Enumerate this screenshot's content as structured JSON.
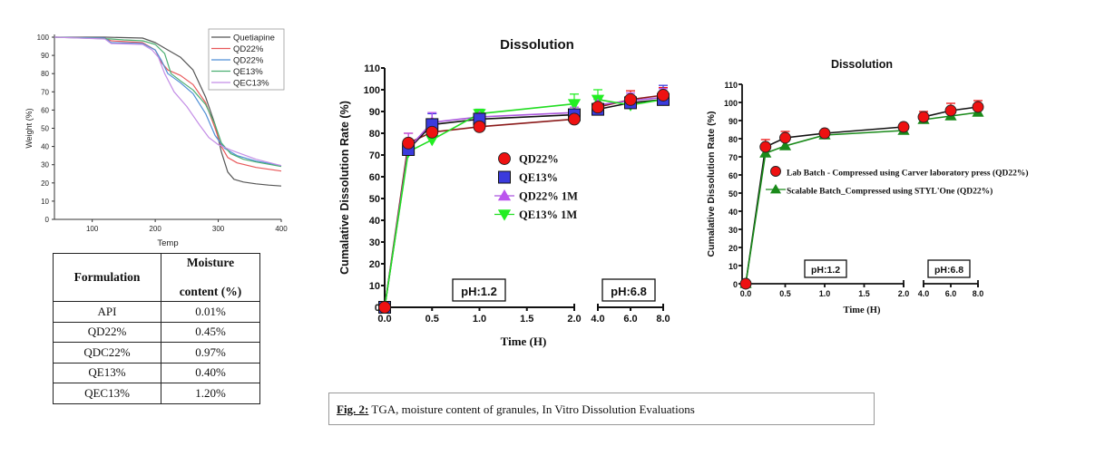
{
  "tga_chart": {
    "type": "line",
    "title": "",
    "xlabel": "Temp",
    "ylabel": "Weight (%)",
    "xlim": [
      40,
      400
    ],
    "ylim": [
      0,
      100
    ],
    "xticks": [
      100,
      200,
      300,
      400
    ],
    "yticks": [
      0,
      10,
      20,
      30,
      40,
      50,
      60,
      70,
      80,
      90,
      100
    ],
    "legend_position": "top-right",
    "series": [
      {
        "name": "Quetiapine",
        "color": "#555555",
        "x": [
          40,
          120,
          180,
          200,
          220,
          240,
          260,
          280,
          295,
          305,
          315,
          325,
          340,
          360,
          380,
          400
        ],
        "y": [
          100,
          100,
          99.5,
          97,
          93,
          89,
          82,
          67,
          52,
          37,
          26,
          22,
          20.5,
          19.5,
          18.8,
          18.3
        ]
      },
      {
        "name": "QD22%",
        "color": "#e8585a",
        "x": [
          40,
          120,
          130,
          180,
          200,
          210,
          220,
          240,
          260,
          280,
          295,
          305,
          315,
          330,
          360,
          400
        ],
        "y": [
          100,
          99.5,
          98,
          97,
          93,
          86,
          82,
          79,
          74,
          64,
          50,
          40,
          34,
          31,
          28.5,
          26.5
        ]
      },
      {
        "name": "QD22%",
        "color": "#4f8fd6",
        "x": [
          40,
          120,
          130,
          180,
          200,
          210,
          220,
          240,
          260,
          280,
          295,
          310,
          330,
          360,
          400
        ],
        "y": [
          100,
          99.5,
          97,
          96.5,
          93,
          87,
          80,
          75,
          69,
          58,
          46,
          39,
          35,
          32,
          29.5
        ]
      },
      {
        "name": "QE13%",
        "color": "#4caf72",
        "x": [
          40,
          130,
          150,
          180,
          200,
          215,
          225,
          240,
          260,
          280,
          295,
          305,
          320,
          340,
          360,
          400
        ],
        "y": [
          100,
          99,
          98.5,
          98,
          96,
          91,
          80,
          76,
          71,
          63,
          52,
          42,
          36,
          33,
          31.5,
          29
        ]
      },
      {
        "name": "QEC13%",
        "color": "#c48ee6",
        "x": [
          40,
          120,
          130,
          180,
          195,
          205,
          215,
          230,
          250,
          270,
          285,
          300,
          320,
          360,
          400
        ],
        "y": [
          100,
          99,
          96.5,
          96,
          93,
          89,
          80,
          70,
          62,
          52,
          45,
          41,
          38,
          33,
          29.5
        ]
      }
    ]
  },
  "moisture_table": {
    "headers": [
      "Formulation",
      "Moisture",
      "content (%)"
    ],
    "rows": [
      [
        "API",
        "0.01%"
      ],
      [
        "QD22%",
        "0.45%"
      ],
      [
        "QDC22%",
        "0.97%"
      ],
      [
        "QE13%",
        "0.40%"
      ],
      [
        "QEC13%",
        "1.20%"
      ]
    ]
  },
  "chart_data": [
    {
      "type": "line",
      "title": "Dissolution",
      "xlabel": "Time (H)",
      "ylabel": "Cumalative Dissolution Rate (%)",
      "ylim": [
        0,
        110
      ],
      "yticks": [
        0,
        10,
        20,
        30,
        40,
        50,
        60,
        70,
        80,
        90,
        100,
        110
      ],
      "x_segments": [
        {
          "range": [
            0,
            2
          ],
          "ticks": [
            "0.0",
            "0.5",
            "1.0",
            "1.5",
            "2.0"
          ],
          "annotation": "pH:1.2"
        },
        {
          "range": [
            4,
            8
          ],
          "ticks": [
            "4.0",
            "6.0",
            "8.0"
          ],
          "annotation": "pH:6.8"
        }
      ],
      "legend_position": "center",
      "x": [
        0,
        0.25,
        0.5,
        1,
        2,
        4,
        6,
        8
      ],
      "series": [
        {
          "name": "QD22%",
          "marker": "circle",
          "color": "#ee1111",
          "line_color": "#8b1a1a",
          "values": [
            0,
            75.5,
            80.5,
            83,
            86.5,
            92,
            95.5,
            97.5
          ],
          "err": [
            0,
            4.5,
            0,
            0,
            0,
            0,
            4,
            3.5
          ]
        },
        {
          "name": "QE13%",
          "marker": "square",
          "color": "#3b3bdd",
          "line_color": "#111111",
          "values": [
            0,
            72.5,
            84,
            86.5,
            88.5,
            91,
            94,
            95.5
          ],
          "err": [
            0,
            0,
            5,
            4.5,
            0,
            5.5,
            0,
            6.5
          ]
        },
        {
          "name": "QD22% 1M",
          "marker": "triangle-up",
          "color": "#bb55ee",
          "line_color": "#aa55dd",
          "values": [
            0,
            73,
            85,
            87.5,
            89.5,
            93,
            95,
            96.5
          ],
          "err": [
            0,
            7,
            4.5,
            3.5,
            2.5,
            2.5,
            3.5,
            4
          ]
        },
        {
          "name": "QE13% 1M",
          "marker": "triangle-down",
          "color": "#22ee22",
          "line_color": "#22dd22",
          "values": [
            0,
            71.5,
            77,
            89,
            93.5,
            95.5,
            93,
            95.5
          ],
          "err": [
            0,
            0,
            0,
            2,
            4.5,
            4.5,
            0,
            0
          ]
        }
      ]
    },
    {
      "type": "line",
      "title": "Dissolution",
      "xlabel": "Time (H)",
      "ylabel": "Cumalative Dissolution Rate (%)",
      "ylim": [
        0,
        110
      ],
      "yticks": [
        0,
        10,
        20,
        30,
        40,
        50,
        60,
        70,
        80,
        90,
        100,
        110
      ],
      "x_segments": [
        {
          "range": [
            0,
            2
          ],
          "ticks": [
            "0.0",
            "0.5",
            "1.0",
            "1.5",
            "2.0"
          ],
          "annotation": "pH:1.2"
        },
        {
          "range": [
            4,
            8
          ],
          "ticks": [
            "4.0",
            "6.0",
            "8.0"
          ],
          "annotation": "pH:6.8"
        }
      ],
      "legend_position": "center",
      "x": [
        0,
        0.25,
        0.5,
        1,
        2,
        4,
        6,
        8
      ],
      "series": [
        {
          "name": "Lab Batch - Compressed using Carver laboratory press  (QD22%)",
          "marker": "circle",
          "color": "#ee1111",
          "line_color": "#111111",
          "values": [
            0,
            75.5,
            80.5,
            83,
            86.5,
            92,
            95.5,
            97.5
          ],
          "err": [
            0,
            4,
            3.5,
            0,
            0,
            3,
            4,
            3.5
          ]
        },
        {
          "name": "Scalable Batch_Compressed using STYL'One  (QD22%)",
          "marker": "triangle-up",
          "color": "#1a8a1a",
          "line_color": "#1a8a1a",
          "values": [
            0,
            72,
            76,
            82,
            84.5,
            90.5,
            92.5,
            94.5
          ],
          "err": [
            0,
            0,
            0,
            0,
            0,
            0,
            0,
            0
          ]
        }
      ]
    }
  ],
  "caption": {
    "label": "Fig. 2:",
    "text": " TGA, moisture content of granules, In Vitro Dissolution Evaluations"
  }
}
